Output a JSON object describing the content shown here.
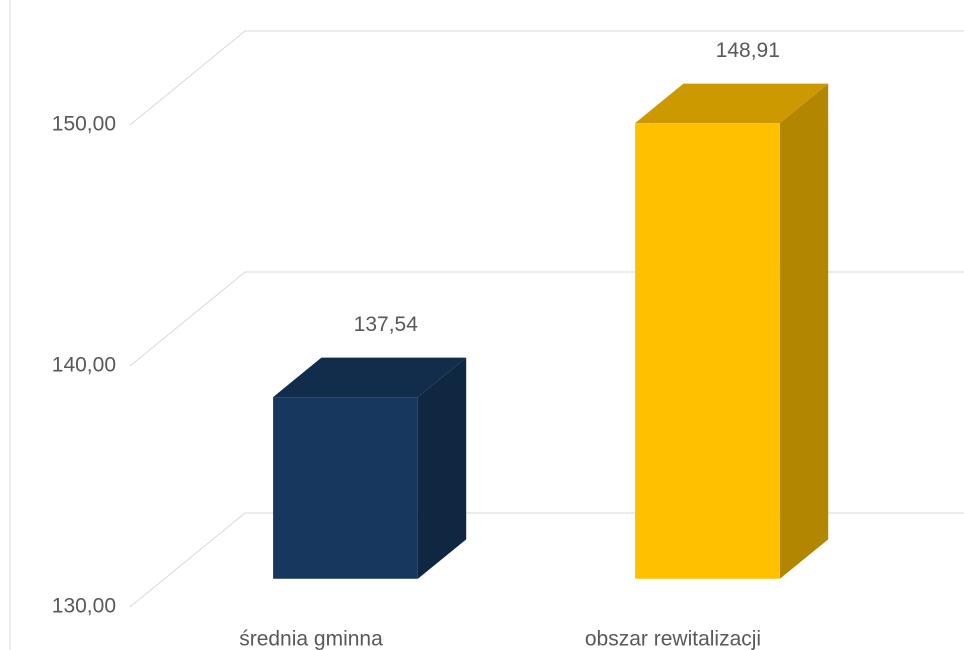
{
  "chart_data": {
    "type": "bar3d",
    "categories": [
      "średnia gminna",
      "obszar rewitalizacji"
    ],
    "values": [
      137.54,
      148.91
    ],
    "value_labels": [
      "137,54",
      "148,91"
    ],
    "colors": [
      "#17375e",
      "#ffc000"
    ],
    "ylim": [
      130,
      150
    ],
    "yticks": [
      {
        "value": 130,
        "label": "130,00"
      },
      {
        "value": 140,
        "label": "140,00"
      },
      {
        "value": 150,
        "label": "150,00"
      }
    ],
    "grid": true
  }
}
